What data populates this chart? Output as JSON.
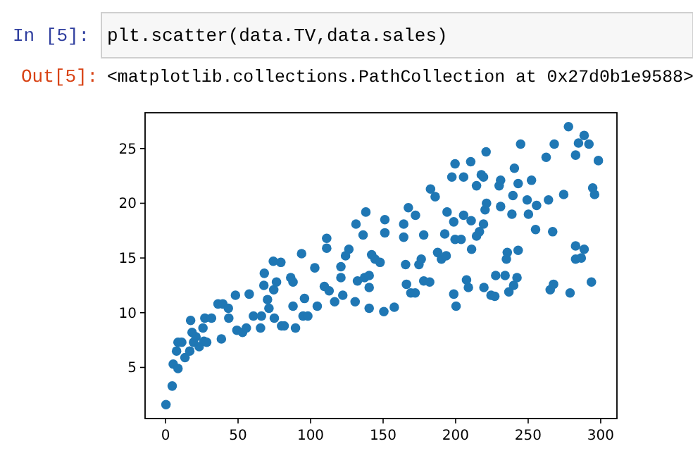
{
  "chart_data": {
    "type": "scatter",
    "annotations": [
      "In  [5]:",
      "plt.scatter(data.TV,data.sales)",
      "Out[5]:",
      "<matplotlib.collections.PathCollection at 0x27d0b1e9588>"
    ],
    "x": [
      0.3,
      4.6,
      5.3,
      8.6,
      7.6,
      8.6,
      11.2,
      13.4,
      16.7,
      17.3,
      18.3,
      19.3,
      21,
      23.2,
      25.8,
      27.1,
      26.5,
      28.4,
      31.7,
      36.2,
      39.5,
      38.5,
      43.3,
      43.6,
      48.2,
      49.2,
      53.1,
      55.7,
      57.7,
      60.6,
      65.5,
      66.1,
      68.1,
      67.8,
      70.3,
      71.3,
      74.6,
      74.3,
      79.5,
      75,
      80,
      76.5,
      86.3,
      87.9,
      87.9,
      89.6,
      81.8,
      94.8,
      98.1,
      95.8,
      93.8,
      102.9,
      104.6,
      109.5,
      111.1,
      111.1,
      112.8,
      116.6,
      120.9,
      120.9,
      124.1,
      126.4,
      122.2,
      130.7,
      132.3,
      131.3,
      136.2,
      138.1,
      137.2,
      140.4,
      140.4,
      140.4,
      142.1,
      144.4,
      147.9,
      150.5,
      157.7,
      151.2,
      151.2,
      164.2,
      164.2,
      167.4,
      172.3,
      165.5,
      166.1,
      169.1,
      172.1,
      174.7,
      176.3,
      178,
      178,
      182.1,
      182.7,
      185.9,
      187.6,
      190.2,
      194.1,
      197.4,
      199.6,
      205.5,
      205.5,
      210.4,
      198.7,
      198.7,
      200.3,
      207.5,
      221,
      217.7,
      214.4,
      219.2,
      210.7,
      219.2,
      214.4,
      216.4,
      220.3,
      221.3,
      230,
      231,
      240.5,
      243.1,
      244.8,
      252.3,
      239.5,
      249.3,
      255.8,
      264,
      262.4,
      268,
      274.5,
      277.8,
      282.7,
      284.7,
      288.6,
      291.9,
      298.4,
      294.5,
      295.8,
      231,
      238.8,
      250.2,
      255.1,
      266.9,
      192.5,
      199.6,
      203.8,
      211,
      193.5,
      235.6,
      235,
      243.1,
      282.7,
      288.6,
      282.7,
      286.6,
      208.8,
      219.5,
      224.4,
      227,
      227.6,
      234.1,
      236.7,
      240,
      242.3,
      265.2,
      267.5,
      278.9,
      293.6
    ],
    "values": [
      1.6,
      3.3,
      5.3,
      4.9,
      6.5,
      7.3,
      7.3,
      5.9,
      6.5,
      9.3,
      8.2,
      7.3,
      7.8,
      6.9,
      8.6,
      9.5,
      7.4,
      7.3,
      9.5,
      10.8,
      10.8,
      7.6,
      10.4,
      9.5,
      11.6,
      8.4,
      8.2,
      8.6,
      11.7,
      9.7,
      8.6,
      9.7,
      13.6,
      12.5,
      11.2,
      10.4,
      12.1,
      14.7,
      14.6,
      9.5,
      8.8,
      12.8,
      13.2,
      12.8,
      10.6,
      8.6,
      8.8,
      9.7,
      9.7,
      11.3,
      15.4,
      14.1,
      10.6,
      12.4,
      16.8,
      15.9,
      12,
      11,
      14.2,
      13.2,
      15.2,
      15.8,
      11.6,
      11,
      12.9,
      18.1,
      17.1,
      19.2,
      13.2,
      13.4,
      12.3,
      10.4,
      15.3,
      14.9,
      14.6,
      10.1,
      10.5,
      18.5,
      17.3,
      18.1,
      16.9,
      19.6,
      18.9,
      14.4,
      12.6,
      11.8,
      11.8,
      14.4,
      14.9,
      17.1,
      12.9,
      12.8,
      21.3,
      20.6,
      15.5,
      14.9,
      19.2,
      22.4,
      23.6,
      22.4,
      18.9,
      23.8,
      18.3,
      11.7,
      10.6,
      13,
      24.7,
      22.6,
      21.6,
      22.4,
      18.4,
      18.1,
      17,
      17.4,
      19.4,
      20,
      21.6,
      22.1,
      23.2,
      21.8,
      25.4,
      22.1,
      20.7,
      20.3,
      19.8,
      20.3,
      24.2,
      25.4,
      20.8,
      27,
      24.4,
      25.5,
      26.2,
      25.4,
      23.9,
      21.4,
      20.8,
      19.7,
      19,
      19,
      17.6,
      17.4,
      17.2,
      16.7,
      16.7,
      15.8,
      15.2,
      15.5,
      14.9,
      15.7,
      16.1,
      15.8,
      14.9,
      15,
      12.3,
      12.3,
      11.6,
      11.5,
      13.4,
      13.4,
      11.9,
      12.5,
      13.2,
      12.1,
      12.6,
      11.8,
      12.8
    ],
    "color": "#1f77b4",
    "marker": "circle",
    "grid": false,
    "xlim": [
      -14.1,
      311.2
    ],
    "ylim": [
      0.33,
      28.27
    ],
    "xticks": [
      0,
      50,
      100,
      150,
      200,
      250,
      300
    ],
    "yticks": [
      5,
      10,
      15,
      20,
      25
    ]
  }
}
